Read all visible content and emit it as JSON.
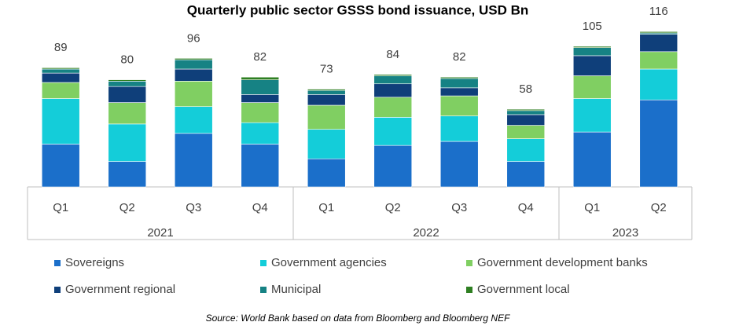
{
  "chart_data": {
    "type": "stacked-bar",
    "title": "Quarterly public sector GSSS bond issuance, USD Bn",
    "source": "Source: World Bank based on data from Bloomberg and Bloomberg NEF",
    "groups": [
      {
        "label": "2021",
        "categories": [
          "Q1",
          "Q2",
          "Q3",
          "Q4"
        ]
      },
      {
        "label": "2022",
        "categories": [
          "Q1",
          "Q2",
          "Q3",
          "Q4"
        ]
      },
      {
        "label": "2023",
        "categories": [
          "Q1",
          "Q2"
        ]
      }
    ],
    "totals": [
      89,
      80,
      96,
      82,
      73,
      84,
      82,
      58,
      105,
      116
    ],
    "ylim": [
      0,
      122
    ],
    "series": [
      {
        "name": "Sovereigns",
        "color": "#1b6fca",
        "values": [
          32,
          19,
          40,
          32,
          21,
          31,
          34,
          19,
          41,
          65
        ]
      },
      {
        "name": "Government agencies",
        "color": "#14cdd9",
        "values": [
          34,
          28,
          20,
          16,
          22,
          21,
          19,
          17,
          25,
          23
        ]
      },
      {
        "name": "Government development banks",
        "color": "#80cf62",
        "values": [
          12,
          16,
          19,
          15,
          18,
          15,
          15,
          10,
          17,
          13
        ]
      },
      {
        "name": "Government regional",
        "color": "#0f3f7a",
        "values": [
          7,
          12,
          9,
          6,
          8,
          10,
          6,
          8,
          15,
          13
        ]
      },
      {
        "name": "Municipal",
        "color": "#168284",
        "values": [
          3,
          4,
          7,
          11,
          3,
          6,
          7,
          3,
          6,
          1
        ]
      },
      {
        "name": "Government local",
        "color": "#2f7f22",
        "values": [
          1,
          1,
          1,
          2,
          1,
          1,
          1,
          1,
          1,
          1
        ]
      }
    ]
  }
}
